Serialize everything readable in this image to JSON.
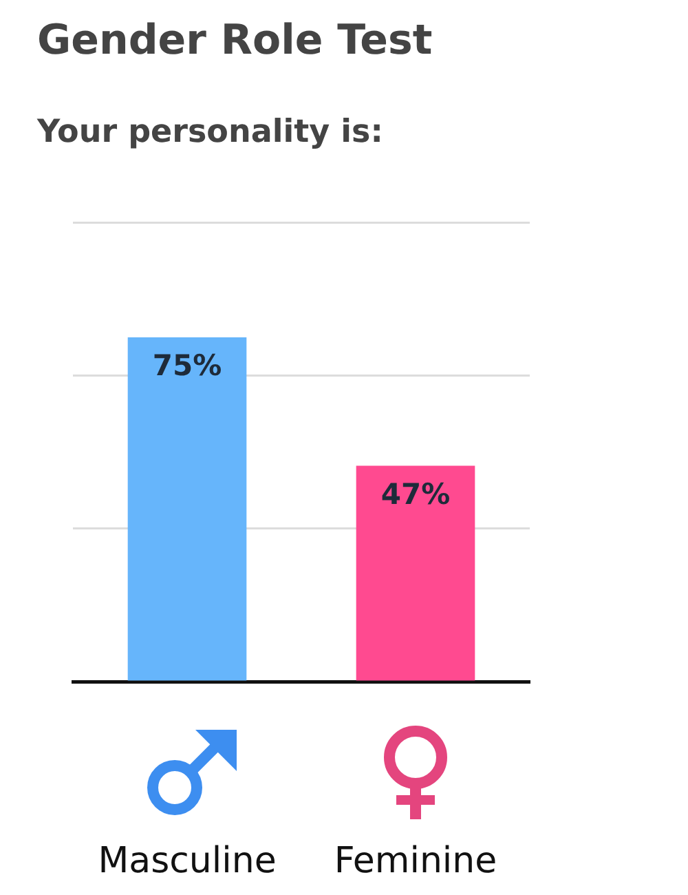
{
  "chart_data": {
    "type": "bar",
    "title": "Gender Role Test",
    "subtitle": "Your personality is:",
    "categories": [
      "Masculine",
      "Feminine"
    ],
    "values": [
      75,
      47
    ],
    "colors": [
      "#66b5fb",
      "#ff4a90"
    ],
    "value_labels": [
      "75%",
      "47%"
    ],
    "ylim": [
      0,
      100
    ],
    "yticks": [
      {
        "value": 0,
        "label": null
      },
      {
        "value": 33.3,
        "label": null
      },
      {
        "value": 66.7,
        "label": null
      },
      {
        "value": 100,
        "label": null
      }
    ],
    "grid": "y",
    "tick_labels": "x"
  }
}
